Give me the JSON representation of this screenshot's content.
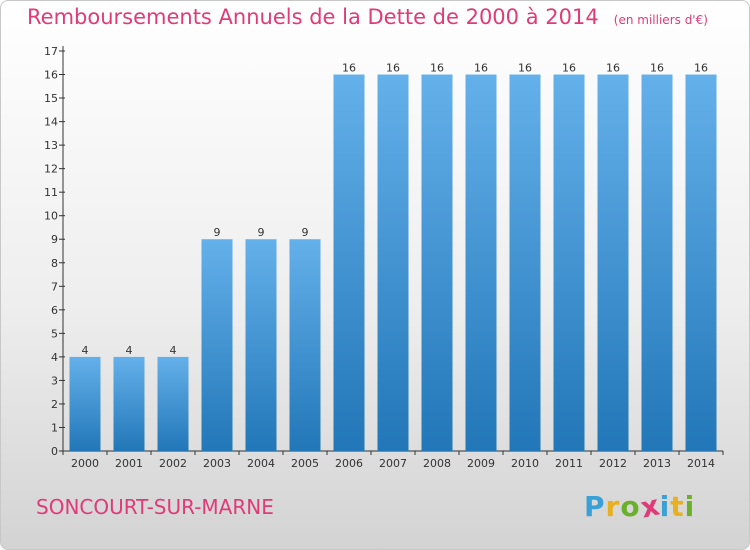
{
  "chart_data": {
    "type": "bar",
    "title": "Remboursements Annuels de la Dette de 2000 à 2014",
    "subtitle": "(en milliers d'€)",
    "categories": [
      "2000",
      "2001",
      "2002",
      "2003",
      "2004",
      "2005",
      "2006",
      "2007",
      "2008",
      "2009",
      "2010",
      "2011",
      "2012",
      "2013",
      "2014"
    ],
    "values": [
      4,
      4,
      4,
      9,
      9,
      9,
      16,
      16,
      16,
      16,
      16,
      16,
      16,
      16,
      16
    ],
    "ylim": [
      0,
      17
    ],
    "yticks": [
      0,
      1,
      2,
      3,
      4,
      5,
      6,
      7,
      8,
      9,
      10,
      11,
      12,
      13,
      14,
      15,
      16,
      17
    ],
    "xlabel": "",
    "ylabel": "",
    "grid": false,
    "bar_color_top": "#64b0ea",
    "bar_color_bottom": "#2277b8",
    "value_labels": true
  },
  "footer": {
    "city": "SONCOURT-SUR-MARNE",
    "brand": "Proxiti"
  },
  "colors": {
    "accent": "#e03a78"
  }
}
